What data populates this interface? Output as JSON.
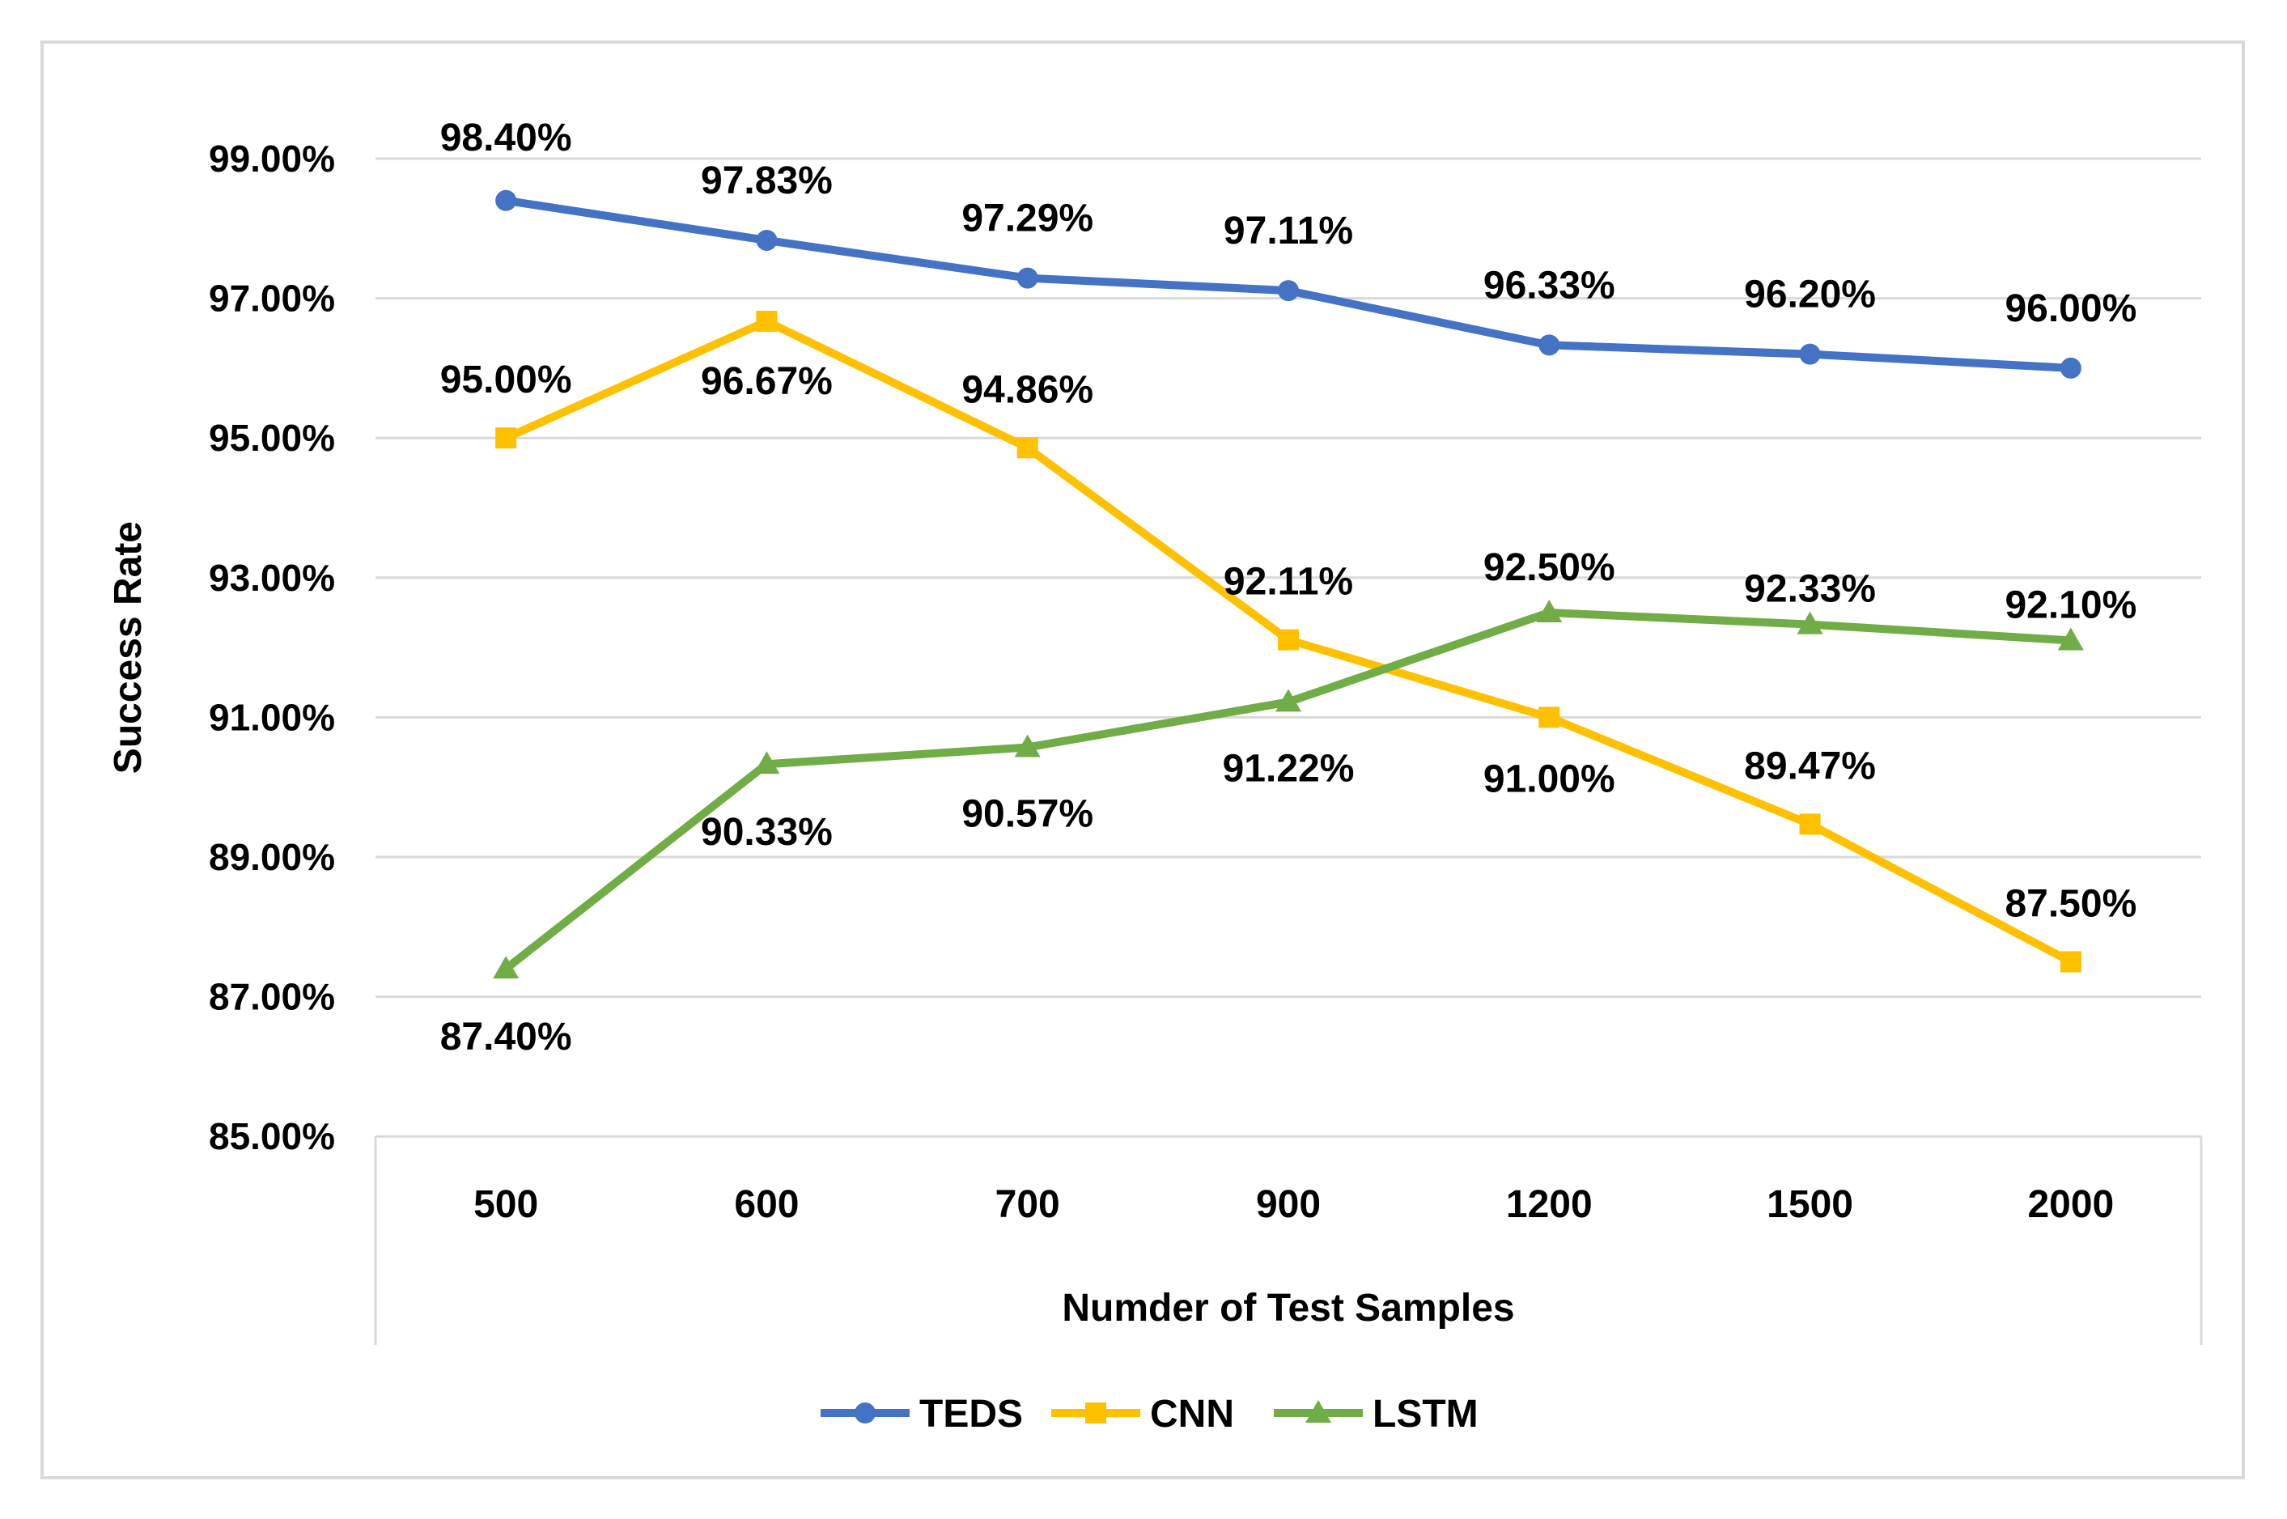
{
  "chart_data": {
    "type": "line",
    "title": "",
    "xlabel": "Numder of Test Samples",
    "ylabel": "Success Rate",
    "categories": [
      "500",
      "600",
      "700",
      "900",
      "1200",
      "1500",
      "2000"
    ],
    "ylim": [
      85,
      100
    ],
    "yticks": [
      85,
      87,
      89,
      91,
      93,
      95,
      97,
      99
    ],
    "ytick_labels": [
      "85.00%",
      "87.00%",
      "89.00%",
      "91.00%",
      "93.00%",
      "95.00%",
      "97.00%",
      "99.00%"
    ],
    "grid": true,
    "legend_position": "bottom",
    "series": [
      {
        "name": "TEDS",
        "color": "#4472c4",
        "marker": "circle",
        "values": [
          98.4,
          97.83,
          97.29,
          97.11,
          96.33,
          96.2,
          96.0
        ],
        "labels": [
          "98.40%",
          "97.83%",
          "97.29%",
          "97.11%",
          "96.33%",
          "96.20%",
          "96.00%"
        ]
      },
      {
        "name": "CNN",
        "color": "#ffc000",
        "marker": "square",
        "values": [
          95.0,
          96.67,
          94.86,
          92.11,
          91.0,
          89.47,
          87.5
        ],
        "labels": [
          "95.00%",
          "96.67%",
          "94.86%",
          "92.11%",
          "91.00%",
          "89.47%",
          "87.50%"
        ]
      },
      {
        "name": "LSTM",
        "color": "#70ad47",
        "marker": "triangle",
        "values": [
          87.4,
          90.33,
          90.57,
          91.22,
          92.5,
          92.33,
          92.1
        ],
        "labels": [
          "87.40%",
          "90.33%",
          "90.57%",
          "91.22%",
          "92.50%",
          "92.33%",
          "92.10%"
        ]
      }
    ]
  }
}
